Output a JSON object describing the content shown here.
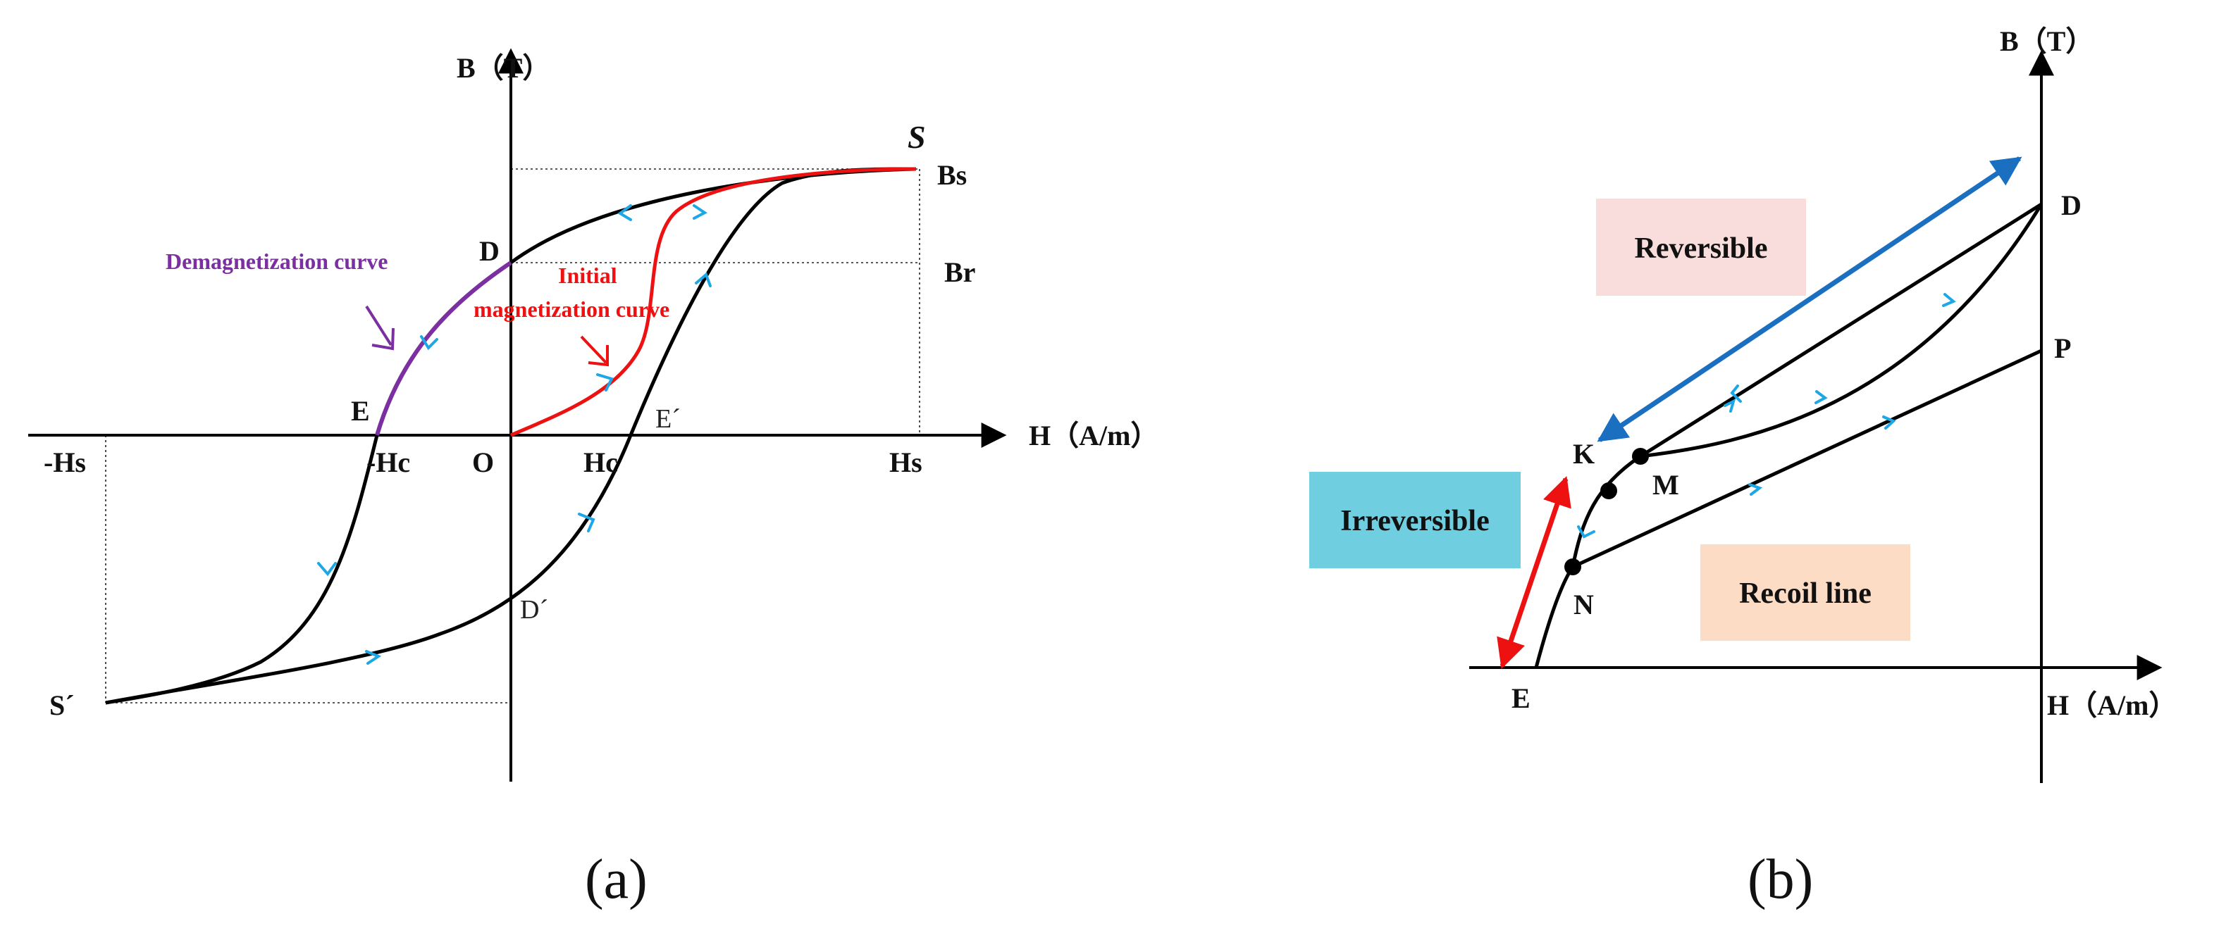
{
  "panels": [
    {
      "id": "a",
      "tag": "(a)",
      "axes": {
        "y_label": "B（T）",
        "x_label": "H（A/m）"
      },
      "labels": {
        "S": "S",
        "Bs": "Bs",
        "D": "D",
        "Br": "Br",
        "E": "E",
        "neg_Hc": "-Hc",
        "O": "O",
        "Hc": "Hc",
        "E_prime": "E´",
        "Hs": "Hs",
        "neg_Hs": "-Hs",
        "D_prime": "D´",
        "S_prime": "S´"
      },
      "annotations": {
        "demag": "Demagnetization curve",
        "initial_line1": "Initial",
        "initial_line2": "magnetization curve"
      },
      "colors": {
        "demag": "#7b2fa0",
        "initial": "#ee1111",
        "arrow": "#1ea7e6",
        "curve": "#000000"
      }
    },
    {
      "id": "b",
      "tag": "(b)",
      "axes": {
        "y_label": "B（T）",
        "x_label": "H（A/m）"
      },
      "labels": {
        "D": "D",
        "P": "P",
        "K": "K",
        "M": "M",
        "N": "N",
        "E": "E"
      },
      "boxes": {
        "reversible": "Reversible",
        "irreversible": "Irreversible",
        "recoil": "Recoil line"
      },
      "colors": {
        "reversible_bg": "#f9dcdc",
        "irreversible_bg": "#6fcfe0",
        "recoil_bg": "#fcdcc4",
        "blue_arrow": "#1a6fc0",
        "red_arrow": "#ee1111",
        "arrow": "#1ea7e6"
      }
    }
  ]
}
